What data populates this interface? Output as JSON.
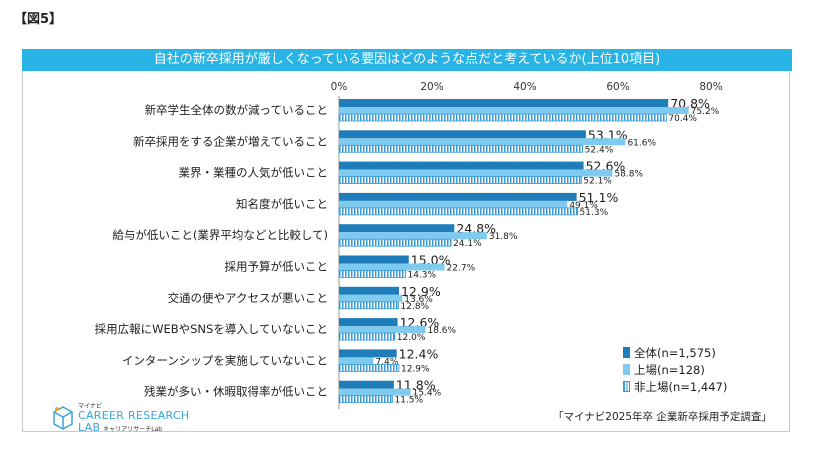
{
  "figure_label": "【図5】",
  "source": "「マイナビ2025年卒 企業新卒採用予定調査」",
  "logo": {
    "top": "マイナビ",
    "line1": "CAREER RESEARCH",
    "line2": "LAB",
    "sub": "キャリアリサーチLab"
  },
  "colors": {
    "title_bg": "#29b4e6",
    "all": "#1f7dba",
    "listed": "#7fcaef",
    "unlisted_stripe": "#3a9ad6"
  },
  "legend": [
    {
      "label": "全体(n=1,575)",
      "style": "solid-dark"
    },
    {
      "label": "上場(n=128)",
      "style": "solid-light"
    },
    {
      "label": "非上場(n=1,447)",
      "style": "striped"
    }
  ],
  "chart_data": {
    "type": "bar",
    "orientation": "horizontal",
    "title": "自社の新卒採用が厳しくなっている要因はどのような点だと考えているか(上位10項目)",
    "xlim": [
      0,
      80
    ],
    "xticks": [
      "0%",
      "20%",
      "40%",
      "60%",
      "80%"
    ],
    "categories": [
      "新卒学生全体の数が減っていること",
      "新卒採用をする企業が増えていること",
      "業界・業種の人気が低いこと",
      "知名度が低いこと",
      "給与が低いこと(業界平均などと比較して)",
      "採用予算が低いこと",
      "交通の便やアクセスが悪いこと",
      "採用広報にWEBやSNSを導入していないこと",
      "インターンシップを実施していないこと",
      "残業が多い・休暇取得率が低いこと"
    ],
    "series": [
      {
        "name": "全体(n=1,575)",
        "values": [
          70.8,
          53.1,
          52.6,
          51.1,
          24.8,
          15.0,
          12.9,
          12.6,
          12.4,
          11.8
        ],
        "labels": [
          "70.8%",
          "53.1%",
          "52.6%",
          "51.1%",
          "24.8%",
          "15.0%",
          "12.9%",
          "12.6%",
          "12.4%",
          "11.8%"
        ]
      },
      {
        "name": "上場(n=128)",
        "values": [
          75.2,
          61.6,
          58.8,
          49.1,
          31.8,
          22.7,
          13.6,
          18.6,
          7.4,
          15.4
        ],
        "labels": [
          "75.2%",
          "61.6%",
          "58.8%",
          "49.1%",
          "31.8%",
          "22.7%",
          "13.6%",
          "18.6%",
          "7.4%",
          "15.4%"
        ]
      },
      {
        "name": "非上場(n=1,447)",
        "values": [
          70.4,
          52.4,
          52.1,
          51.3,
          24.1,
          14.3,
          12.8,
          12.0,
          12.9,
          11.5
        ],
        "labels": [
          "70.4%",
          "52.4%",
          "52.1%",
          "51.3%",
          "24.1%",
          "14.3%",
          "12.8%",
          "12.0%",
          "12.9%",
          "11.5%"
        ]
      }
    ],
    "grid": false,
    "legend_position": "bottom-right"
  }
}
